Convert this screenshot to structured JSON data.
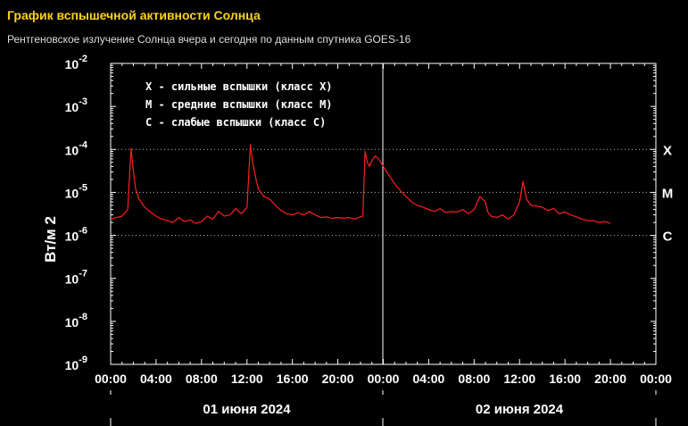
{
  "header": {
    "title": "График вспышечной активности Солнца",
    "subtitle": "Рентгеновское излучение Солнца вчера и сегодня по данным спутника GOES-16"
  },
  "chart_data": {
    "type": "line",
    "title": "График вспышечной активности Солнца",
    "ylabel": "Вт/м 2",
    "y_scale": "log",
    "ylim": [
      1e-09,
      0.01
    ],
    "y_ticks": [
      {
        "base": "10",
        "exp": "-2"
      },
      {
        "base": "10",
        "exp": "-3"
      },
      {
        "base": "10",
        "exp": "-4"
      },
      {
        "base": "10",
        "exp": "-5"
      },
      {
        "base": "10",
        "exp": "-6"
      },
      {
        "base": "10",
        "exp": "-7"
      },
      {
        "base": "10",
        "exp": "-8"
      },
      {
        "base": "10",
        "exp": "-9"
      }
    ],
    "x_unit": "hours since 01 июня 2024 00:00",
    "xlim": [
      0,
      48
    ],
    "x_ticks": [
      "00:00",
      "04:00",
      "08:00",
      "12:00",
      "16:00",
      "20:00",
      "00:00",
      "04:00",
      "08:00",
      "12:00",
      "16:00",
      "20:00",
      "00:00"
    ],
    "days": [
      "01 июня 2024",
      "02 июня 2024"
    ],
    "legend": [
      "X - сильные вспышки (класс X)",
      "M - средние вспышки (класс M)",
      "C - слабые вспышки (класс C)"
    ],
    "class_levels": [
      {
        "label": "X",
        "value": 0.0001
      },
      {
        "label": "M",
        "value": 1e-05
      },
      {
        "label": "C",
        "value": 1e-06
      }
    ],
    "series": [
      {
        "color": "#ff2020",
        "x": [
          0,
          0.5,
          1,
          1.5,
          1.8,
          2,
          2.2,
          2.5,
          3,
          3.5,
          4,
          4.5,
          5,
          5.5,
          6,
          6.5,
          7,
          7.5,
          8,
          8.5,
          9,
          9.5,
          10,
          10.5,
          11,
          11.5,
          12,
          12.3,
          12.5,
          12.8,
          13,
          13.5,
          14,
          14.5,
          15,
          15.5,
          16,
          16.5,
          17,
          17.5,
          18,
          18.5,
          19,
          19.5,
          20,
          20.5,
          21,
          21.5,
          22,
          22.2,
          22.4,
          22.6,
          22.8,
          23,
          23.3,
          23.6,
          24,
          24.5,
          25,
          25.5,
          26,
          26.5,
          27,
          27.5,
          28,
          28.5,
          29,
          29.5,
          30,
          30.5,
          31,
          31.5,
          32,
          32.5,
          33,
          33.2,
          33.5,
          34,
          34.5,
          35,
          35.5,
          36,
          36.3,
          36.6,
          37,
          37.5,
          38,
          38.5,
          39,
          39.5,
          40,
          40.5,
          41,
          41.5,
          42,
          42.5,
          43,
          43.5,
          44
        ],
        "values": [
          2.4e-06,
          2.6e-06,
          2.8e-06,
          4e-06,
          0.000105,
          3e-05,
          1.2e-05,
          7e-06,
          4.5e-06,
          3.5e-06,
          2.8e-06,
          2.4e-06,
          2.2e-06,
          2e-06,
          2.6e-06,
          2.1e-06,
          2.3e-06,
          1.9e-06,
          2.1e-06,
          2.8e-06,
          2.4e-06,
          3.6e-06,
          2.8e-06,
          3e-06,
          4.2e-06,
          3.2e-06,
          4.5e-06,
          0.00013,
          5e-05,
          2e-05,
          1.2e-05,
          8e-06,
          7e-06,
          5e-06,
          3.8e-06,
          3.2e-06,
          3e-06,
          3.4e-06,
          3e-06,
          3.6e-06,
          3e-06,
          2.6e-06,
          2.7e-06,
          2.5e-06,
          2.6e-06,
          2.5e-06,
          2.6e-06,
          2.4e-06,
          2.7e-06,
          2.8e-06,
          9e-05,
          5e-05,
          4e-05,
          5.5e-05,
          7e-05,
          6e-05,
          4e-05,
          2.5e-05,
          1.6e-05,
          1.1e-05,
          8e-06,
          6e-06,
          5e-06,
          4.5e-06,
          4e-06,
          3.6e-06,
          4.2e-06,
          3.4e-06,
          3.6e-06,
          3.5e-06,
          4e-06,
          3.2e-06,
          4e-06,
          8e-06,
          6e-06,
          3.5e-06,
          2.8e-06,
          2.6e-06,
          3e-06,
          2.4e-06,
          3e-06,
          6e-06,
          1.8e-05,
          7e-06,
          5e-06,
          4.8e-06,
          4.5e-06,
          3.8e-06,
          4.2e-06,
          3.2e-06,
          3.5e-06,
          3e-06,
          2.7e-06,
          2.4e-06,
          2.2e-06,
          2.2e-06,
          2e-06,
          2.1e-06,
          1.9e-06
        ]
      }
    ]
  }
}
